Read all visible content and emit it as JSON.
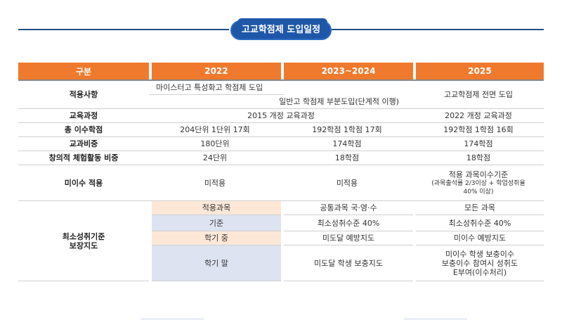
{
  "title": "고교학점제 도입일정",
  "columns": [
    "구분",
    "2022",
    "2023~2024",
    "2025"
  ],
  "rows": {
    "apply": {
      "label": "적용사항",
      "line1": "마이스터고 특성화고 학점제 도입",
      "line2": "일반고 학점제 부분도입(단계적 이행)",
      "y2025": "고교학점제 전면 도입"
    },
    "curriculum": {
      "label": "교육과정",
      "y2022_2024": "2015 개정 교육과정",
      "y2025": "2022 개정 교육과정"
    },
    "credits": {
      "label": "총 이수학점",
      "y2022": "204단위 1단위 17회",
      "y2023": "192학점 1학점 17회",
      "y2025": "192학점 1학점 16회"
    },
    "subject_ratio": {
      "label": "교과비중",
      "y2022": "180단위",
      "y2023": "174학점",
      "y2025": "174학점"
    },
    "creative": {
      "label": "창의적 체험활동 비중",
      "y2022": "24단위",
      "y2023": "18학점",
      "y2025": "18학점"
    },
    "fail": {
      "label": "미이수 적용",
      "y2022": "미적용",
      "y2023": "미적용",
      "y2025_line1": "적용 과목이수기준",
      "y2025_line2": "(과목출석률 2/3이상 + 학업성취율",
      "y2025_line3": "40% 이상)"
    },
    "minimum": {
      "label_line1": "최소성취기준",
      "label_line2": "보장지도",
      "subs": [
        {
          "name": "적용과목",
          "y2023": "공통과목 국·영·수",
          "y2025": "모든 과목"
        },
        {
          "name": "기준",
          "y2023": "최소성취수준 40%",
          "y2025": "최소성취수준 40%"
        },
        {
          "name": "학기 중",
          "y2023": "미도달 예방지도",
          "y2025": "미이수 예방지도"
        },
        {
          "name": "학기 말",
          "y2023": "미도달 학생 보충지도",
          "y2025_line1": "미이수 학생 보충이수",
          "y2025_line2": "보충이수 참여시 성취도",
          "y2025_line3": "E부여(이수처리)"
        }
      ]
    }
  }
}
